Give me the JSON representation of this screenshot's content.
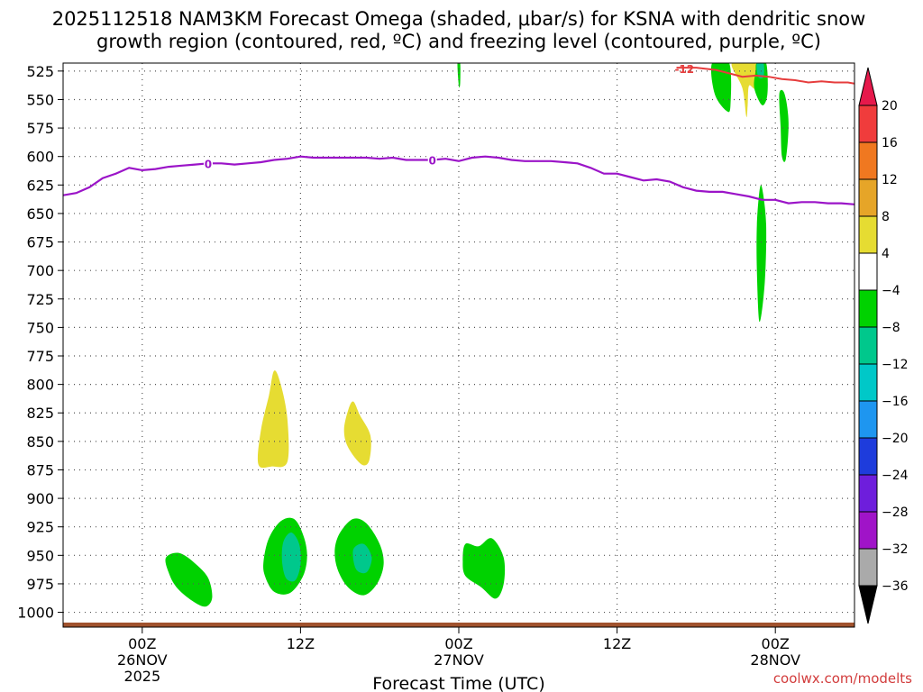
{
  "chart_data": {
    "type": "heatmap",
    "title_line1": "2025112518 NAM3KM Forecast Omega (shaded, μbar/s) for KSNA with dendritic snow",
    "title_line2": "growth region (contoured, red, ºC) and freezing level (contoured, purple, ºC)",
    "xlabel": "Forecast Time (UTC)",
    "ylabel": "",
    "credit": "coolwx.com/modelts",
    "x_range_hours": [
      -6,
      54
    ],
    "y_range_mb": [
      1013,
      518
    ],
    "y_ticks": [
      {
        "value": 525,
        "label": "525"
      },
      {
        "value": 550,
        "label": "550"
      },
      {
        "value": 575,
        "label": "575"
      },
      {
        "value": 600,
        "label": "600"
      },
      {
        "value": 625,
        "label": "625"
      },
      {
        "value": 650,
        "label": "650"
      },
      {
        "value": 675,
        "label": "675"
      },
      {
        "value": 700,
        "label": "700"
      },
      {
        "value": 725,
        "label": "725"
      },
      {
        "value": 750,
        "label": "750"
      },
      {
        "value": 775,
        "label": "775"
      },
      {
        "value": 800,
        "label": "800"
      },
      {
        "value": 825,
        "label": "825"
      },
      {
        "value": 850,
        "label": "850"
      },
      {
        "value": 875,
        "label": "875"
      },
      {
        "value": 900,
        "label": "900"
      },
      {
        "value": 925,
        "label": "925"
      },
      {
        "value": 950,
        "label": "950"
      },
      {
        "value": 975,
        "label": "975"
      },
      {
        "value": 1000,
        "label": "1000"
      }
    ],
    "x_ticks": [
      {
        "hour": 0,
        "lines": [
          "00Z",
          "26NOV",
          "2025"
        ]
      },
      {
        "hour": 12,
        "lines": [
          "12Z"
        ]
      },
      {
        "hour": 24,
        "lines": [
          "00Z",
          "27NOV"
        ]
      },
      {
        "hour": 36,
        "lines": [
          "12Z"
        ]
      },
      {
        "hour": 48,
        "lines": [
          "00Z",
          "28NOV"
        ]
      }
    ],
    "grid": true,
    "colorbar": {
      "position": "right",
      "levels": [
        20,
        16,
        12,
        8,
        4,
        -4,
        -8,
        -12,
        -16,
        -20,
        -24,
        -28,
        -32,
        -36
      ],
      "colors": [
        "#e6194b",
        "#f03c3c",
        "#f07820",
        "#e6a528",
        "#e6dc32",
        "#ffffff",
        "#00d200",
        "#00c88c",
        "#00c8c8",
        "#1e96f0",
        "#1e3cdc",
        "#6e1edc",
        "#a014c8",
        "#aaaaaa",
        "#000000"
      ]
    },
    "freezing_level": {
      "label": "0",
      "color": "#9b14c8",
      "label_hours": [
        5,
        22
      ],
      "series": [
        {
          "hour": -6,
          "mb": 634
        },
        {
          "hour": -5,
          "mb": 632
        },
        {
          "hour": -4,
          "mb": 627
        },
        {
          "hour": -3,
          "mb": 619
        },
        {
          "hour": -2,
          "mb": 615
        },
        {
          "hour": -1,
          "mb": 610
        },
        {
          "hour": 0,
          "mb": 612
        },
        {
          "hour": 1,
          "mb": 611
        },
        {
          "hour": 2,
          "mb": 609
        },
        {
          "hour": 3,
          "mb": 608
        },
        {
          "hour": 4,
          "mb": 607
        },
        {
          "hour": 5,
          "mb": 606
        },
        {
          "hour": 6,
          "mb": 606
        },
        {
          "hour": 7,
          "mb": 607
        },
        {
          "hour": 8,
          "mb": 606
        },
        {
          "hour": 9,
          "mb": 605
        },
        {
          "hour": 10,
          "mb": 603
        },
        {
          "hour": 11,
          "mb": 602
        },
        {
          "hour": 12,
          "mb": 600
        },
        {
          "hour": 13,
          "mb": 601
        },
        {
          "hour": 14,
          "mb": 601
        },
        {
          "hour": 15,
          "mb": 601
        },
        {
          "hour": 16,
          "mb": 601
        },
        {
          "hour": 17,
          "mb": 601
        },
        {
          "hour": 18,
          "mb": 602
        },
        {
          "hour": 19,
          "mb": 601
        },
        {
          "hour": 20,
          "mb": 603
        },
        {
          "hour": 21,
          "mb": 603
        },
        {
          "hour": 22,
          "mb": 603
        },
        {
          "hour": 23,
          "mb": 602
        },
        {
          "hour": 24,
          "mb": 604
        },
        {
          "hour": 25,
          "mb": 601
        },
        {
          "hour": 26,
          "mb": 600
        },
        {
          "hour": 27,
          "mb": 601
        },
        {
          "hour": 28,
          "mb": 603
        },
        {
          "hour": 29,
          "mb": 604
        },
        {
          "hour": 30,
          "mb": 604
        },
        {
          "hour": 31,
          "mb": 604
        },
        {
          "hour": 32,
          "mb": 605
        },
        {
          "hour": 33,
          "mb": 606
        },
        {
          "hour": 34,
          "mb": 610
        },
        {
          "hour": 35,
          "mb": 615
        },
        {
          "hour": 36,
          "mb": 615
        },
        {
          "hour": 37,
          "mb": 618
        },
        {
          "hour": 38,
          "mb": 621
        },
        {
          "hour": 39,
          "mb": 620
        },
        {
          "hour": 40,
          "mb": 622
        },
        {
          "hour": 41,
          "mb": 627
        },
        {
          "hour": 42,
          "mb": 630
        },
        {
          "hour": 43,
          "mb": 631
        },
        {
          "hour": 44,
          "mb": 631
        },
        {
          "hour": 45,
          "mb": 633
        },
        {
          "hour": 46,
          "mb": 635
        },
        {
          "hour": 47,
          "mb": 638
        },
        {
          "hour": 48,
          "mb": 638
        },
        {
          "hour": 49,
          "mb": 641
        },
        {
          "hour": 50,
          "mb": 640
        },
        {
          "hour": 51,
          "mb": 640
        },
        {
          "hour": 52,
          "mb": 641
        },
        {
          "hour": 53,
          "mb": 641
        },
        {
          "hour": 54,
          "mb": 642
        }
      ]
    },
    "dgz_contour": {
      "label": "-12",
      "color": "#e63c3c",
      "series": [
        {
          "hour": 40.5,
          "mb": 522
        },
        {
          "hour": 42,
          "mb": 522
        },
        {
          "hour": 43.5,
          "mb": 524
        },
        {
          "hour": 44.5,
          "mb": 527
        },
        {
          "hour": 45.5,
          "mb": 530
        },
        {
          "hour": 46.5,
          "mb": 529
        },
        {
          "hour": 47.5,
          "mb": 530
        },
        {
          "hour": 48.5,
          "mb": 532
        },
        {
          "hour": 49.5,
          "mb": 533
        },
        {
          "hour": 50.5,
          "mb": 535
        },
        {
          "hour": 51.5,
          "mb": 534
        },
        {
          "hour": 52.5,
          "mb": 535
        },
        {
          "hour": 53.5,
          "mb": 535
        },
        {
          "hour": 54,
          "mb": 536
        }
      ]
    },
    "omega_regions": [
      {
        "name": "ascent-26nov-03z",
        "level": -4,
        "color": "#00d200",
        "points": [
          [
            1.8,
            952
          ],
          [
            2.8,
            948
          ],
          [
            4.0,
            957
          ],
          [
            5.0,
            970
          ],
          [
            5.3,
            987
          ],
          [
            4.8,
            995
          ],
          [
            3.8,
            990
          ],
          [
            2.6,
            978
          ],
          [
            2.0,
            965
          ]
        ]
      },
      {
        "name": "ascent-26nov-11z",
        "level": -4,
        "color": "#00d200",
        "points": [
          [
            9.2,
            955
          ],
          [
            9.6,
            935
          ],
          [
            10.5,
            920
          ],
          [
            11.5,
            918
          ],
          [
            12.2,
            932
          ],
          [
            12.5,
            950
          ],
          [
            12.2,
            968
          ],
          [
            11.2,
            983
          ],
          [
            10.0,
            982
          ],
          [
            9.3,
            968
          ]
        ]
      },
      {
        "name": "ascent-26nov-11z-core",
        "level": -8,
        "color": "#00c88c",
        "points": [
          [
            10.7,
            938
          ],
          [
            11.3,
            930
          ],
          [
            11.9,
            940
          ],
          [
            12.0,
            958
          ],
          [
            11.6,
            972
          ],
          [
            10.9,
            970
          ],
          [
            10.6,
            955
          ]
        ]
      },
      {
        "name": "ascent-26nov-18z",
        "level": -4,
        "color": "#00d200",
        "points": [
          [
            14.6,
            945
          ],
          [
            15.0,
            930
          ],
          [
            16.0,
            918
          ],
          [
            17.0,
            922
          ],
          [
            18.0,
            940
          ],
          [
            18.3,
            958
          ],
          [
            17.8,
            975
          ],
          [
            16.8,
            985
          ],
          [
            15.6,
            978
          ],
          [
            14.8,
            962
          ]
        ]
      },
      {
        "name": "ascent-26nov-18z-core",
        "level": -8,
        "color": "#00c88c",
        "points": [
          [
            16.0,
            945
          ],
          [
            16.8,
            940
          ],
          [
            17.4,
            952
          ],
          [
            17.0,
            965
          ],
          [
            16.2,
            962
          ]
        ]
      },
      {
        "name": "ascent-27nov-02z",
        "level": -4,
        "color": "#00d200",
        "points": [
          [
            24.3,
            955
          ],
          [
            24.5,
            940
          ],
          [
            25.5,
            942
          ],
          [
            26.5,
            935
          ],
          [
            27.4,
            952
          ],
          [
            27.4,
            975
          ],
          [
            26.8,
            988
          ],
          [
            25.7,
            978
          ],
          [
            24.5,
            968
          ]
        ]
      },
      {
        "name": "descent-26nov-10z",
        "level": 4,
        "color": "#e6dc32",
        "points": [
          [
            8.8,
            870
          ],
          [
            9.0,
            840
          ],
          [
            9.6,
            810
          ],
          [
            10.0,
            788
          ],
          [
            10.5,
            800
          ],
          [
            11.0,
            830
          ],
          [
            11.0,
            868
          ],
          [
            9.8,
            872
          ]
        ]
      },
      {
        "name": "descent-26nov-16z",
        "level": 4,
        "color": "#e6dc32",
        "points": [
          [
            15.3,
            840
          ],
          [
            15.6,
            823
          ],
          [
            16.0,
            815
          ],
          [
            16.5,
            827
          ],
          [
            17.3,
            845
          ],
          [
            17.2,
            867
          ],
          [
            16.6,
            870
          ],
          [
            15.6,
            855
          ]
        ]
      },
      {
        "name": "ascent-27nov-00z-aloft",
        "level": -4,
        "color": "#00d200",
        "points": [
          [
            23.9,
            518
          ],
          [
            24.1,
            518
          ],
          [
            24.1,
            536
          ],
          [
            24.0,
            538
          ]
        ]
      },
      {
        "name": "ascent-27nov-17z-aloft",
        "level": -4,
        "color": "#00d200",
        "points": [
          [
            43.2,
            518
          ],
          [
            44.5,
            518
          ],
          [
            44.6,
            555
          ],
          [
            44.3,
            560
          ],
          [
            43.4,
            545
          ]
        ]
      },
      {
        "name": "descent-27nov-20z-aloft",
        "level": 4,
        "color": "#e6dc32",
        "points": [
          [
            44.7,
            518
          ],
          [
            46.5,
            518
          ],
          [
            46.5,
            540
          ],
          [
            46.0,
            538
          ],
          [
            45.9,
            555
          ],
          [
            45.8,
            565
          ],
          [
            45.5,
            540
          ]
        ]
      },
      {
        "name": "ascent-27nov-21z-aloft",
        "level": -4,
        "color": "#00d200",
        "points": [
          [
            46.6,
            518
          ],
          [
            47.3,
            518
          ],
          [
            47.4,
            545
          ],
          [
            47.0,
            555
          ],
          [
            46.4,
            540
          ],
          [
            46.5,
            525
          ]
        ]
      },
      {
        "name": "ascent-27nov-21z-core",
        "level": -8,
        "color": "#00c88c",
        "points": [
          [
            46.6,
            518
          ],
          [
            47.1,
            518
          ],
          [
            47.1,
            530
          ],
          [
            46.7,
            530
          ]
        ]
      },
      {
        "name": "ascent-27nov-23z-aloft",
        "level": -4,
        "color": "#00d200",
        "points": [
          [
            48.3,
            545
          ],
          [
            48.7,
            545
          ],
          [
            49.0,
            570
          ],
          [
            48.8,
            602
          ],
          [
            48.5,
            600
          ],
          [
            48.4,
            575
          ]
        ]
      },
      {
        "name": "ascent-27nov-21z-mid",
        "level": -4,
        "color": "#00d200",
        "points": [
          [
            46.8,
            630
          ],
          [
            47.0,
            628
          ],
          [
            47.3,
            660
          ],
          [
            47.2,
            710
          ],
          [
            46.8,
            745
          ],
          [
            46.6,
            700
          ],
          [
            46.6,
            660
          ]
        ]
      }
    ],
    "surface": {
      "color": "#a0522d",
      "mb_top": 1009,
      "mb_bottom": 1013
    }
  }
}
